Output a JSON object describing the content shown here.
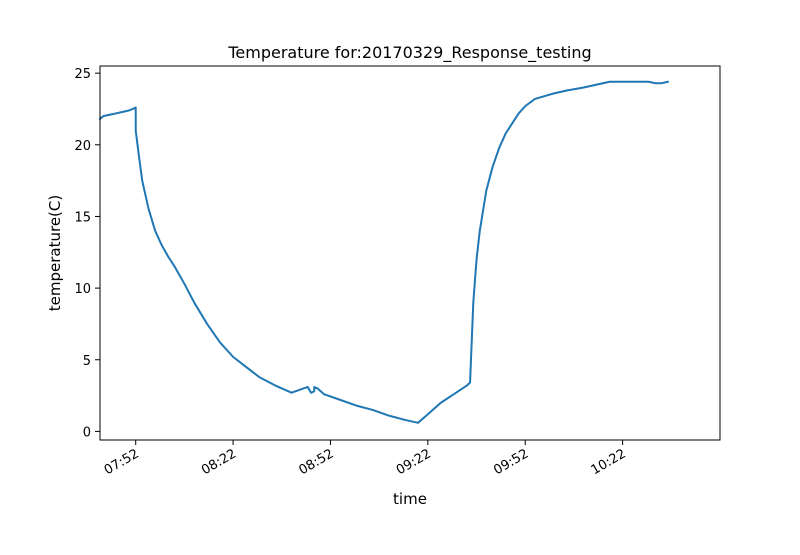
{
  "chart_data": {
    "type": "line",
    "title": "Temperature for:20170329_Response_testing",
    "xlabel": "time",
    "ylabel": "temperature(C)",
    "xlim": [
      "07:41",
      "10:52"
    ],
    "ylim": [
      -0.6,
      25.5
    ],
    "x_ticks": [
      "07:52",
      "08:22",
      "08:52",
      "09:22",
      "09:52",
      "10:22"
    ],
    "y_ticks": [
      0,
      5,
      10,
      15,
      20,
      25
    ],
    "grid": false,
    "series": [
      {
        "color": "#1f77b4",
        "x": [
          "07:41",
          "07:42",
          "07:44",
          "07:46",
          "07:48",
          "07:50",
          "07:51",
          "07:52",
          "07:52",
          "07:53",
          "07:54",
          "07:56",
          "07:58",
          "08:00",
          "08:02",
          "08:04",
          "08:07",
          "08:10",
          "08:14",
          "08:18",
          "08:22",
          "08:26",
          "08:30",
          "08:35",
          "08:40",
          "08:45",
          "08:46",
          "08:47",
          "08:47",
          "08:48",
          "08:49",
          "08:50",
          "08:55",
          "09:00",
          "09:05",
          "09:10",
          "09:15",
          "09:19",
          "09:22",
          "09:26",
          "09:30",
          "09:34",
          "09:35",
          "09:36",
          "09:37",
          "09:38",
          "09:40",
          "09:42",
          "09:44",
          "09:46",
          "09:48",
          "09:50",
          "09:52",
          "09:55",
          "09:58",
          "10:01",
          "10:05",
          "10:10",
          "10:14",
          "10:18",
          "10:22",
          "10:26",
          "10:30",
          "10:32",
          "10:34",
          "10:36"
        ],
        "y": [
          21.8,
          22.0,
          22.1,
          22.2,
          22.3,
          22.4,
          22.5,
          22.6,
          21.0,
          19.2,
          17.5,
          15.5,
          14.0,
          13.0,
          12.2,
          11.5,
          10.3,
          9.0,
          7.5,
          6.2,
          5.2,
          4.5,
          3.8,
          3.2,
          2.7,
          3.1,
          2.7,
          2.8,
          3.1,
          3.0,
          2.8,
          2.6,
          2.2,
          1.8,
          1.5,
          1.1,
          0.8,
          0.6,
          1.2,
          2.0,
          2.6,
          3.2,
          3.4,
          9.0,
          12.0,
          14.0,
          16.8,
          18.5,
          19.8,
          20.8,
          21.5,
          22.2,
          22.7,
          23.2,
          23.4,
          23.6,
          23.8,
          24.0,
          24.2,
          24.4,
          24.4,
          24.4,
          24.4,
          24.3,
          24.3,
          24.4
        ]
      }
    ]
  }
}
